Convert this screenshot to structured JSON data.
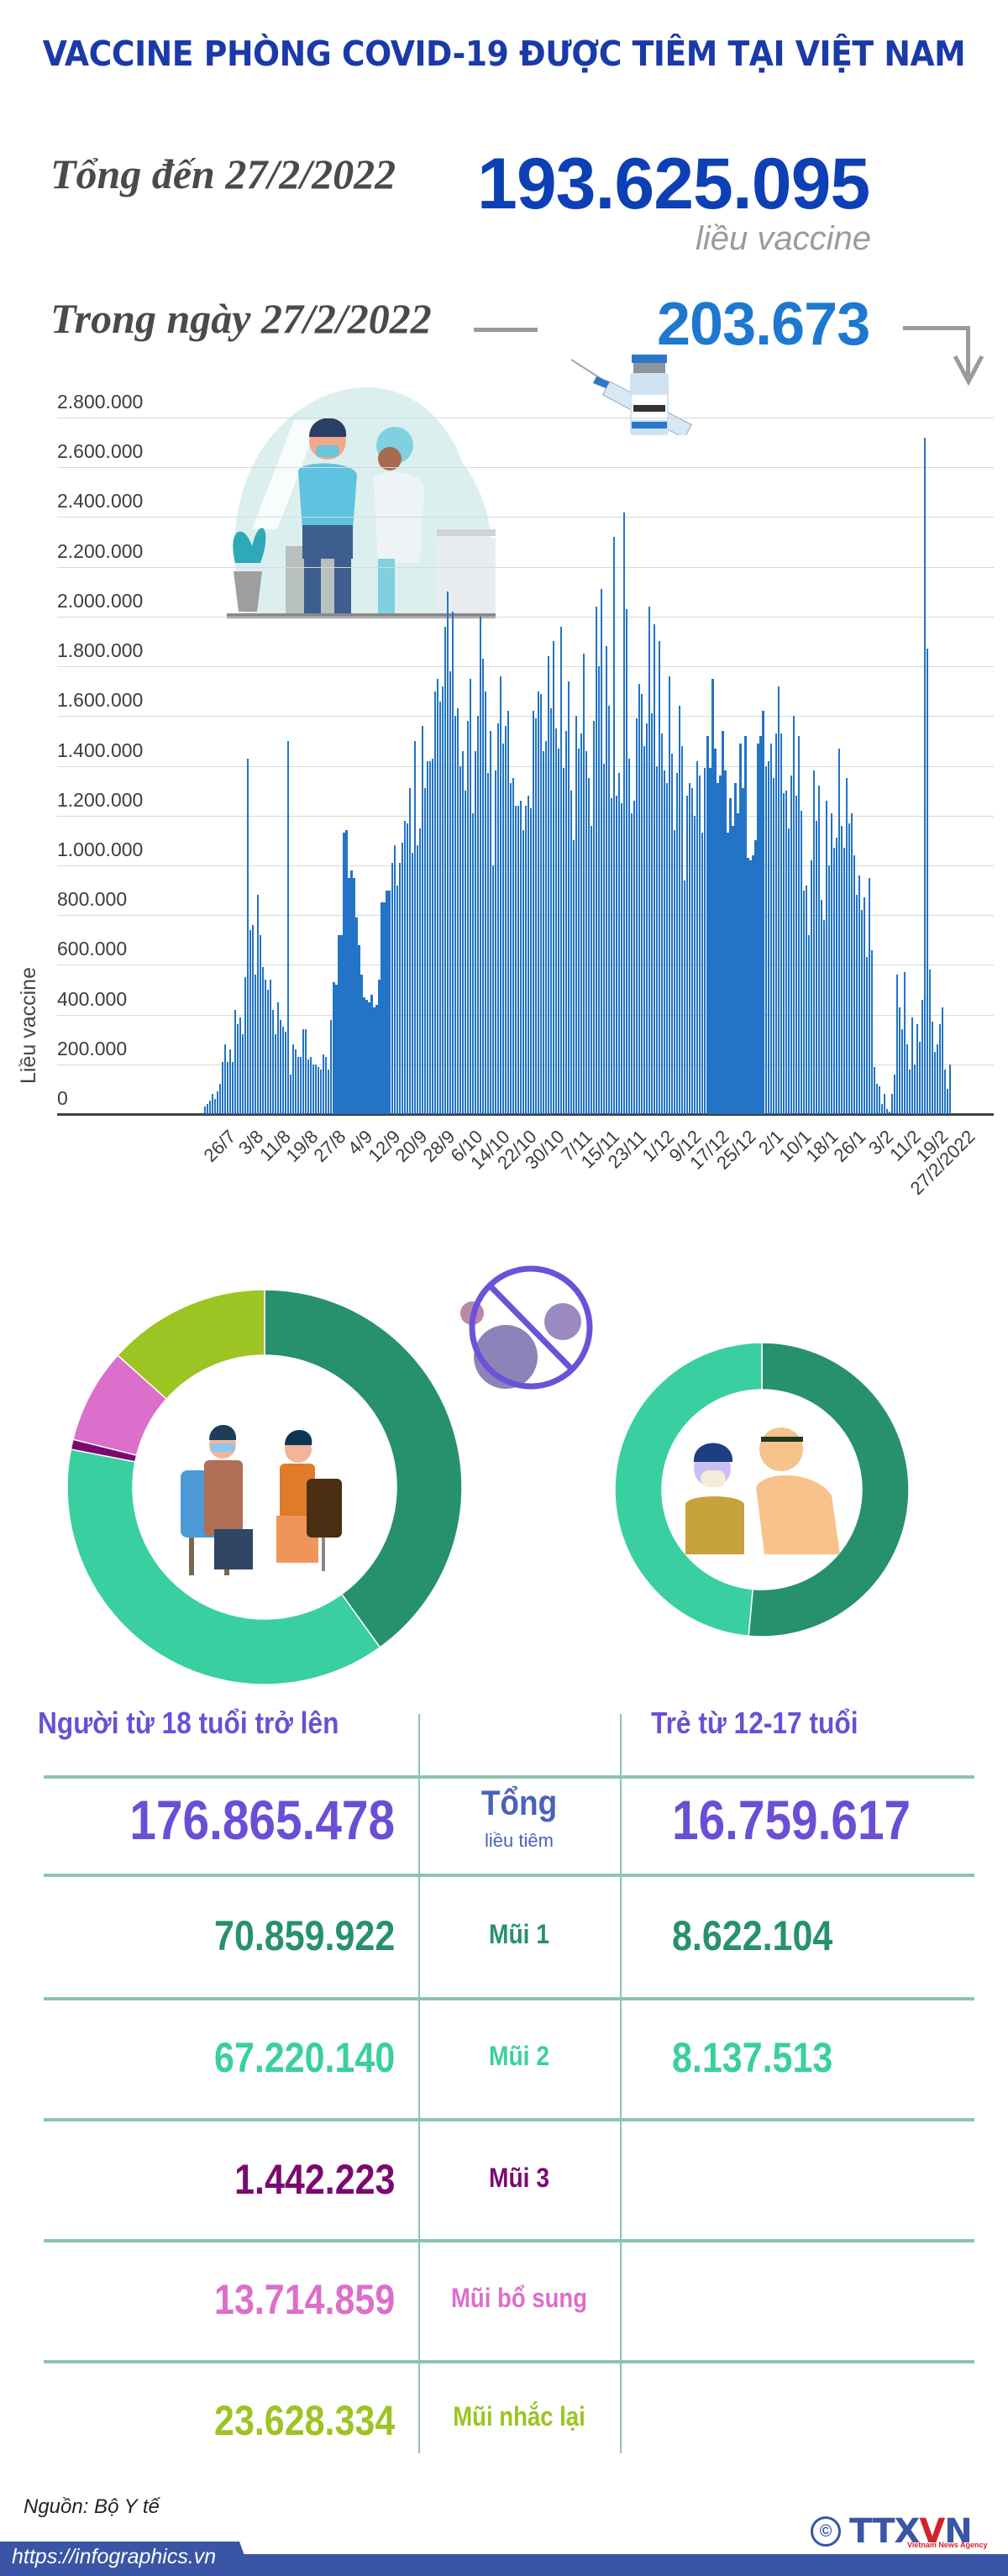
{
  "header": {
    "title": "VACCINE PHÒNG COVID-19 ĐƯỢC TIÊM TẠI VIỆT NAM",
    "total_label": "Tổng đến 27/2/2022",
    "total_value": "193.625.095",
    "total_unit": "liều vaccine",
    "daily_label": "Trong ngày 27/2/2022",
    "daily_value": "203.673"
  },
  "colors": {
    "title": "#1a3aa8",
    "total_value": "#0d3fb5",
    "daily_value": "#1e78cf",
    "bar": "#2374c6",
    "dose1": "#27906f",
    "dose2": "#3acfa0",
    "dose3": "#7b0a6f",
    "additional": "#db6fcb",
    "booster": "#9cc422",
    "header_purple": "#6a4fd6",
    "footer": "#3a55a5"
  },
  "chart_data": [
    {
      "type": "bar",
      "title": "",
      "xlabel": "",
      "ylabel": "Liều vaccine",
      "ylim": [
        0,
        2800000
      ],
      "y_ticks": [
        "2.800.000",
        "2.600.000",
        "2.400.000",
        "2.200.000",
        "2.000.000",
        "1.800.000",
        "1.600.000",
        "1.400.000",
        "1.200.000",
        "1.000.000",
        "800.000",
        "600.000",
        "400.000",
        "200.000",
        "0"
      ],
      "grid": true,
      "categories": [
        "26/7",
        "3/8",
        "11/8",
        "19/8",
        "27/8",
        "4/9",
        "12/9",
        "20/9",
        "28/9",
        "6/10",
        "14/10",
        "22/10",
        "30/10",
        "7/11",
        "15/11",
        "23/11",
        "1/12",
        "9/12",
        "17/12",
        "25/12",
        "2/1",
        "10/1",
        "18/1",
        "26/1",
        "3/2",
        "11/2",
        "19/2",
        "27/2/2022"
      ],
      "values": [
        30000,
        40000,
        55000,
        80000,
        60000,
        90000,
        120000,
        210000,
        280000,
        210000,
        260000,
        210000,
        420000,
        360000,
        390000,
        320000,
        550000,
        1430000,
        740000,
        760000,
        560000,
        880000,
        720000,
        590000,
        540000,
        500000,
        540000,
        420000,
        320000,
        450000,
        380000,
        350000,
        330000,
        1500000,
        160000,
        280000,
        260000,
        230000,
        230000,
        340000,
        340000,
        220000,
        230000,
        200000,
        200000,
        190000,
        180000,
        240000,
        230000,
        180000,
        380000,
        530000,
        520000,
        720000,
        720000,
        1130000,
        1140000,
        950000,
        980000,
        950000,
        790000,
        680000,
        560000,
        470000,
        460000,
        450000,
        480000,
        430000,
        440000,
        540000,
        850000,
        850000,
        900000,
        900000,
        1010000,
        1080000,
        920000,
        1010000,
        1090000,
        1180000,
        1170000,
        1310000,
        1050000,
        1500000,
        1080000,
        1150000,
        1560000,
        1310000,
        1420000,
        1420000,
        1430000,
        1700000,
        1750000,
        1660000,
        1720000,
        1960000,
        2100000,
        1780000,
        2020000,
        1600000,
        1630000,
        1400000,
        1460000,
        1300000,
        1580000,
        1750000,
        1210000,
        1460000,
        1600000,
        2000000,
        1830000,
        1700000,
        1370000,
        1540000,
        1000000,
        1380000,
        1570000,
        1760000,
        1490000,
        1560000,
        1620000,
        1330000,
        1350000,
        1240000,
        1240000,
        1260000,
        1140000,
        1240000,
        1280000,
        1230000,
        1620000,
        1590000,
        1700000,
        1690000,
        1460000,
        1500000,
        1840000,
        1630000,
        1900000,
        1550000,
        1470000,
        1960000,
        1390000,
        1540000,
        1740000,
        1300000,
        1100000,
        1600000,
        1470000,
        1530000,
        1850000,
        1460000,
        1350000,
        1160000,
        1580000,
        2040000,
        1800000,
        2110000,
        1410000,
        1880000,
        1640000,
        1270000,
        2320000,
        1280000,
        1370000,
        1250000,
        2420000,
        2030000,
        1430000,
        1210000,
        1260000,
        1590000,
        1730000,
        1690000,
        1480000,
        1570000,
        2040000,
        1610000,
        1970000,
        1400000,
        1900000,
        1530000,
        1380000,
        1330000,
        1760000,
        1450000,
        1140000,
        1370000,
        1640000,
        1480000,
        940000,
        1280000,
        1330000,
        1310000,
        1200000,
        1420000,
        1360000,
        1130000,
        1390000,
        1520000,
        1390000,
        1750000,
        1470000,
        1330000,
        1360000,
        1540000,
        1380000,
        1130000,
        1270000,
        1160000,
        1330000,
        1210000,
        1490000,
        1310000,
        1520000,
        1030000,
        1020000,
        1040000,
        1100000,
        1490000,
        1520000,
        1620000,
        1400000,
        1420000,
        1490000,
        1350000,
        1530000,
        1720000,
        1530000,
        1290000,
        1300000,
        1150000,
        1360000,
        1600000,
        1280000,
        1520000,
        1220000,
        900000,
        920000,
        720000,
        1020000,
        1380000,
        1180000,
        1320000,
        860000,
        780000,
        1260000,
        1000000,
        1210000,
        1070000,
        1110000,
        1470000,
        1160000,
        1070000,
        1350000,
        1170000,
        1210000,
        1040000,
        880000,
        960000,
        820000,
        870000,
        630000,
        950000,
        660000,
        190000,
        120000,
        110000,
        40000,
        80000,
        20000,
        10000,
        80000,
        160000,
        560000,
        430000,
        340000,
        570000,
        280000,
        180000,
        390000,
        200000,
        360000,
        290000,
        460000,
        2720000,
        1870000,
        580000,
        370000,
        250000,
        280000,
        360000,
        430000,
        180000,
        100000,
        200000
      ]
    },
    {
      "type": "pie",
      "title": "Người từ 18 tuổi trở lên",
      "categories": [
        "Mũi 1",
        "Mũi 2",
        "Mũi 3",
        "Mũi bổ sung",
        "Mũi nhắc lại"
      ],
      "values": [
        70859922,
        67220140,
        1442223,
        13714859,
        23628334
      ],
      "total": 176865478
    },
    {
      "type": "pie",
      "title": "Trẻ từ 12-17 tuổi",
      "categories": [
        "Mũi 1",
        "Mũi 2"
      ],
      "values": [
        8622104,
        8137513
      ],
      "total": 16759617
    }
  ],
  "table": {
    "headers": {
      "adults": "Người từ 18 tuổi trở lên",
      "children": "Trẻ từ 12-17 tuổi"
    },
    "rows": [
      {
        "label": "Tổng",
        "sublabel": "liều tiêm",
        "adults": "176.865.478",
        "children": "16.759.617"
      },
      {
        "label": "Mũi 1",
        "adults": "70.859.922",
        "children": "8.622.104"
      },
      {
        "label": "Mũi 2",
        "adults": "67.220.140",
        "children": "8.137.513"
      },
      {
        "label": "Mũi 3",
        "adults": "1.442.223",
        "children": ""
      },
      {
        "label": "Mũi bổ sung",
        "adults": "13.714.859",
        "children": ""
      },
      {
        "label": "Mũi nhắc lại",
        "adults": "23.628.334",
        "children": ""
      }
    ]
  },
  "footer": {
    "source": "Nguồn: Bộ Y tế",
    "url": "https://infographics.vn",
    "logo": "TTXVN",
    "logo_sub": "Vietnam News Agency",
    "copyright": "©"
  }
}
